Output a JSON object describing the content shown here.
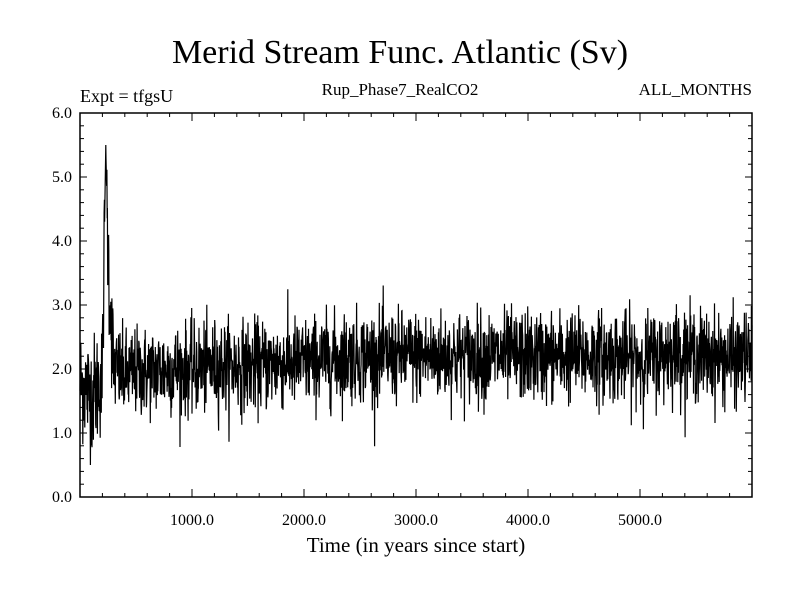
{
  "chart_data": {
    "type": "line",
    "title": "Merid Stream Func. Atlantic (Sv)",
    "subtitle_left": "Expt = tfgsU",
    "subtitle_center": "Rup_Phase7_RealCO2",
    "subtitle_right": "ALL_MONTHS",
    "xlabel": "Time (in years since start)",
    "ylabel": "",
    "xlim": [
      0,
      6000
    ],
    "ylim": [
      0.0,
      6.0
    ],
    "xticks": [
      1000,
      2000,
      3000,
      4000,
      5000
    ],
    "xtick_labels": [
      "1000.0",
      "2000.0",
      "3000.0",
      "4000.0",
      "5000.0"
    ],
    "yticks": [
      0.0,
      1.0,
      2.0,
      3.0,
      4.0,
      5.0,
      6.0
    ],
    "ytick_labels": [
      "0.0",
      "1.0",
      "2.0",
      "3.0",
      "4.0",
      "5.0",
      "6.0"
    ],
    "grid": false,
    "line_color": "#000000",
    "series": [
      {
        "x": [
          0,
          50,
          100,
          150,
          200,
          230,
          250,
          300,
          400,
          500,
          600,
          800,
          1000,
          1200,
          1400,
          1600,
          1800,
          2000,
          2200,
          2260,
          2400,
          2600,
          2800,
          3000,
          3200,
          3400,
          3600,
          3800,
          4000,
          4200,
          4400,
          4600,
          4800,
          5000,
          5200,
          5290,
          5400,
          5600,
          5800,
          6000
        ],
        "y": [
          1.8,
          1.7,
          1.6,
          1.7,
          1.9,
          5.5,
          3.8,
          2.0,
          1.9,
          1.95,
          1.95,
          2.0,
          2.0,
          2.05,
          2.05,
          2.05,
          2.1,
          2.1,
          2.15,
          2.15,
          2.2,
          2.2,
          2.2,
          2.2,
          2.2,
          2.2,
          2.2,
          2.2,
          2.2,
          2.2,
          2.2,
          2.2,
          2.2,
          2.15,
          2.2,
          2.3,
          2.25,
          2.2,
          2.15,
          2.2
        ]
      }
    ]
  }
}
